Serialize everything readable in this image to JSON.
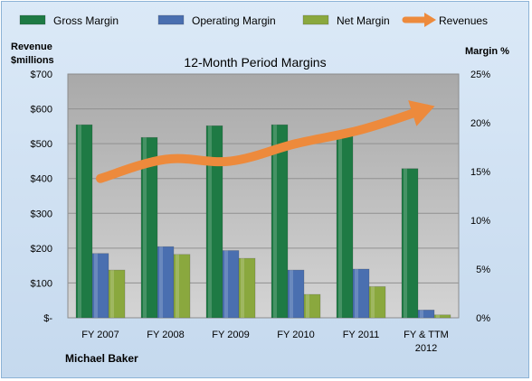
{
  "chart_data": {
    "type": "bar",
    "title": "12-Month Period Margins",
    "left_axis_title": [
      "Revenue",
      "$millions"
    ],
    "right_axis_title": "Margin %",
    "caption": "Michael Baker",
    "categories": [
      "FY 2007",
      "FY 2008",
      "FY 2009",
      "FY 2010",
      "FY 2011",
      "FY & TTM 2012"
    ],
    "left_ticks": [
      "$-",
      "$100",
      "$200",
      "$300",
      "$400",
      "$500",
      "$600",
      "$700"
    ],
    "right_ticks": [
      "0%",
      "5%",
      "10%",
      "15%",
      "20%",
      "25%"
    ],
    "ylim_left": [
      0,
      700
    ],
    "ylim_right": [
      0,
      25
    ],
    "grid": true,
    "legend_position": "top",
    "series": [
      {
        "name": "Gross Margin",
        "axis": "right",
        "kind": "bar",
        "color": "#1e7a44",
        "values": [
          19.8,
          18.5,
          19.7,
          19.8,
          18.8,
          15.3
        ]
      },
      {
        "name": "Operating Margin",
        "axis": "right",
        "kind": "bar",
        "color": "#4a6fb0",
        "values": [
          6.6,
          7.3,
          6.9,
          4.9,
          5.0,
          0.8
        ]
      },
      {
        "name": "Net Margin",
        "axis": "right",
        "kind": "bar",
        "color": "#8aa83e",
        "values": [
          4.9,
          6.5,
          6.1,
          2.4,
          3.2,
          0.3
        ]
      },
      {
        "name": "Revenues",
        "axis": "left",
        "kind": "line-arrow",
        "color": "#ed8a3c",
        "values": [
          400,
          455,
          450,
          500,
          540,
          600
        ]
      }
    ]
  }
}
